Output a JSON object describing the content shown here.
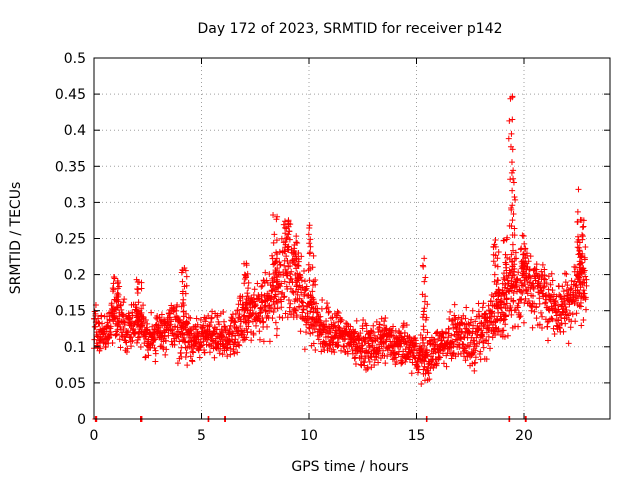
{
  "chart_data": {
    "type": "scatter",
    "title": "Day 172 of 2023, SRMTID for receiver p142",
    "xlabel": "GPS time / hours",
    "ylabel": "SRMTID / TECUs",
    "xlim": [
      0,
      24
    ],
    "ylim": [
      0,
      0.5
    ],
    "xticks": [
      0,
      5,
      10,
      15,
      20
    ],
    "xtick_labels": [
      "0",
      "5",
      "10",
      "15",
      "20"
    ],
    "yticks": [
      0,
      0.05,
      0.1,
      0.15,
      0.2,
      0.25,
      0.3,
      0.35,
      0.4,
      0.45,
      0.5
    ],
    "ytick_labels": [
      "0",
      "0.05",
      "0.1",
      "0.15",
      "0.2",
      "0.25",
      "0.3",
      "0.35",
      "0.4",
      "0.45",
      "0.5"
    ],
    "grid": true,
    "marker": "plus",
    "color": "#ff0000",
    "trend": {
      "x": [
        0,
        0.5,
        1,
        1.5,
        2,
        2.5,
        3,
        3.5,
        4,
        4.5,
        5,
        5.5,
        6,
        6.5,
        7,
        7.5,
        8,
        8.5,
        9,
        9.5,
        10,
        10.5,
        11,
        11.5,
        12,
        12.5,
        13,
        13.5,
        14,
        14.5,
        15,
        15.5,
        16,
        16.5,
        17,
        17.5,
        18,
        18.5,
        19,
        19.5,
        20,
        20.5,
        21,
        21.5,
        22,
        22.5,
        22.9
      ],
      "y": [
        0.13,
        0.11,
        0.15,
        0.12,
        0.14,
        0.11,
        0.12,
        0.13,
        0.12,
        0.11,
        0.11,
        0.12,
        0.11,
        0.12,
        0.14,
        0.15,
        0.16,
        0.18,
        0.21,
        0.18,
        0.15,
        0.13,
        0.12,
        0.12,
        0.11,
        0.1,
        0.1,
        0.11,
        0.1,
        0.1,
        0.09,
        0.08,
        0.1,
        0.11,
        0.12,
        0.11,
        0.12,
        0.14,
        0.15,
        0.18,
        0.19,
        0.18,
        0.17,
        0.15,
        0.16,
        0.18,
        0.19
      ],
      "spread": [
        0.03,
        0.03,
        0.04,
        0.03,
        0.03,
        0.03,
        0.03,
        0.04,
        0.04,
        0.03,
        0.03,
        0.03,
        0.03,
        0.04,
        0.04,
        0.04,
        0.05,
        0.06,
        0.07,
        0.06,
        0.05,
        0.04,
        0.04,
        0.03,
        0.03,
        0.03,
        0.03,
        0.03,
        0.03,
        0.03,
        0.03,
        0.03,
        0.03,
        0.03,
        0.04,
        0.04,
        0.04,
        0.05,
        0.05,
        0.06,
        0.05,
        0.05,
        0.05,
        0.04,
        0.05,
        0.05,
        0.05
      ]
    },
    "bursts": [
      {
        "x": 1.0,
        "y": 0.2
      },
      {
        "x": 2.1,
        "y": 0.2
      },
      {
        "x": 4.2,
        "y": 0.21
      },
      {
        "x": 7.1,
        "y": 0.22
      },
      {
        "x": 8.4,
        "y": 0.3
      },
      {
        "x": 9.0,
        "y": 0.28
      },
      {
        "x": 9.4,
        "y": 0.26
      },
      {
        "x": 10.1,
        "y": 0.27
      },
      {
        "x": 15.4,
        "y": 0.24
      },
      {
        "x": 18.7,
        "y": 0.25
      },
      {
        "x": 19.1,
        "y": 0.26
      },
      {
        "x": 19.4,
        "y": 0.45
      },
      {
        "x": 19.5,
        "y": 0.33
      },
      {
        "x": 20.0,
        "y": 0.26
      },
      {
        "x": 22.6,
        "y": 0.33
      },
      {
        "x": 22.7,
        "y": 0.28
      }
    ],
    "zero_markers": [
      0.1,
      2.2,
      5.3,
      6.1,
      15.5,
      19.3,
      20.1
    ]
  }
}
